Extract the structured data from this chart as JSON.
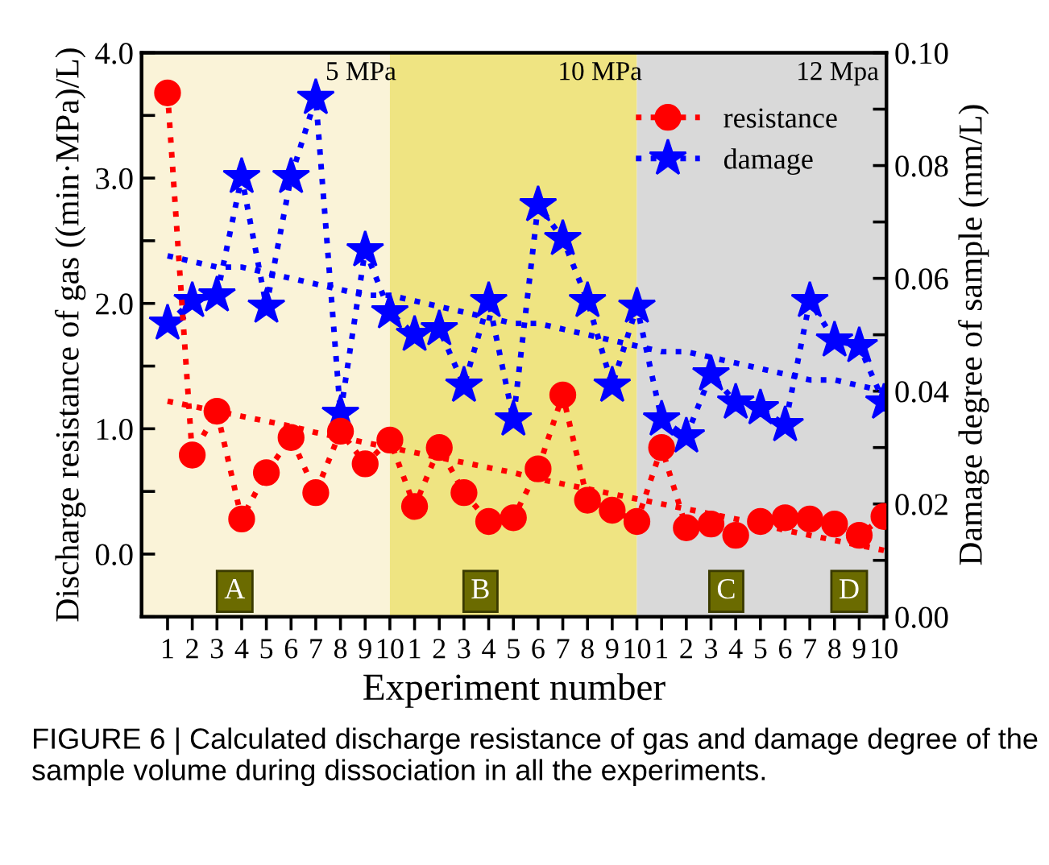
{
  "chart_data": {
    "type": "line",
    "xlabel": "Experiment number",
    "ylabel": "Discharge resistance of gas ((min·MPa)/L)",
    "y2label": "Damage degree of sample (mm/L)",
    "categories": [
      "1",
      "2",
      "3",
      "4",
      "5",
      "6",
      "7",
      "8",
      "9",
      "10",
      "1",
      "2",
      "3",
      "4",
      "5",
      "6",
      "7",
      "8",
      "9",
      "10",
      "1",
      "2",
      "3",
      "4",
      "5",
      "6",
      "7",
      "8",
      "9",
      "10"
    ],
    "ylim": [
      -0.5,
      4.0
    ],
    "yticks": [
      {
        "value": -0.5,
        "label": null
      },
      {
        "value": 0.0,
        "label": "0.0"
      },
      {
        "value": 0.5,
        "label": null
      },
      {
        "value": 1.0,
        "label": "1.0"
      },
      {
        "value": 1.5,
        "label": null
      },
      {
        "value": 2.0,
        "label": "2.0"
      },
      {
        "value": 2.5,
        "label": null
      },
      {
        "value": 3.0,
        "label": "3.0"
      },
      {
        "value": 3.5,
        "label": null
      },
      {
        "value": 4.0,
        "label": "4.0"
      }
    ],
    "y2lim": [
      0,
      0.1
    ],
    "y2ticks": [
      {
        "value": 0.0,
        "label": "0.00"
      },
      {
        "value": 0.01,
        "label": null
      },
      {
        "value": 0.02,
        "label": "0.02"
      },
      {
        "value": 0.03,
        "label": null
      },
      {
        "value": 0.04,
        "label": "0.04"
      },
      {
        "value": 0.05,
        "label": null
      },
      {
        "value": 0.06,
        "label": "0.06"
      },
      {
        "value": 0.07,
        "label": null
      },
      {
        "value": 0.08,
        "label": "0.08"
      },
      {
        "value": 0.09,
        "label": null
      },
      {
        "value": 0.1,
        "label": "0.10"
      }
    ],
    "series": [
      {
        "name": "resistance",
        "color": "#ff0000",
        "marker": "circle",
        "line_style": "dotted",
        "values": [
          3.68,
          0.79,
          1.14,
          0.28,
          0.65,
          0.93,
          0.49,
          0.98,
          0.72,
          0.91,
          0.38,
          0.85,
          0.49,
          0.26,
          0.29,
          0.68,
          1.27,
          0.43,
          0.35,
          0.26,
          0.85,
          0.21,
          0.24,
          0.15,
          0.26,
          0.29,
          0.28,
          0.24,
          0.15,
          0.3
        ]
      },
      {
        "name": "damage",
        "color": "#0000ff",
        "marker": "star",
        "line_style": "dotted",
        "axis": "y2",
        "values": [
          0.052,
          0.056,
          0.057,
          0.078,
          0.055,
          0.078,
          0.092,
          0.036,
          0.065,
          0.054,
          0.05,
          0.051,
          0.041,
          0.056,
          0.035,
          0.073,
          0.067,
          0.056,
          0.041,
          0.055,
          0.035,
          0.032,
          0.043,
          0.038,
          0.037,
          0.034,
          0.056,
          0.049,
          0.048,
          0.038
        ]
      },
      {
        "color": "#ff0000",
        "marker": "none",
        "line_style": "dotted",
        "values": [
          1.22,
          1.18,
          1.14,
          1.1,
          1.06,
          1.02,
          0.97,
          0.93,
          0.89,
          0.85,
          0.81,
          0.77,
          0.73,
          0.69,
          0.65,
          0.6,
          0.56,
          0.52,
          0.48,
          0.44,
          0.4,
          0.36,
          0.32,
          0.28,
          0.24,
          0.19,
          0.15,
          0.11,
          0.07,
          0.03
        ]
      },
      {
        "color": "#0000ff",
        "marker": "none",
        "line_style": "dotted",
        "axis": "y2",
        "values": [
          0.064,
          0.063,
          0.062,
          0.062,
          0.061,
          0.06,
          0.059,
          0.058,
          0.057,
          0.057,
          0.056,
          0.055,
          0.054,
          0.053,
          0.052,
          0.052,
          0.051,
          0.05,
          0.049,
          0.048,
          0.047,
          0.047,
          0.046,
          0.045,
          0.044,
          0.043,
          0.042,
          0.042,
          0.041,
          0.04
        ]
      }
    ],
    "annotations": [
      "5 MPa",
      "10 MPa",
      "12 Mpa",
      "A",
      "B",
      "C",
      "D",
      "FIGURE 6 | Calculated discharge resistance of gas and damage degree of the sample volume during dissociation in all the experiments."
    ],
    "legend": "top right",
    "grid": false
  }
}
